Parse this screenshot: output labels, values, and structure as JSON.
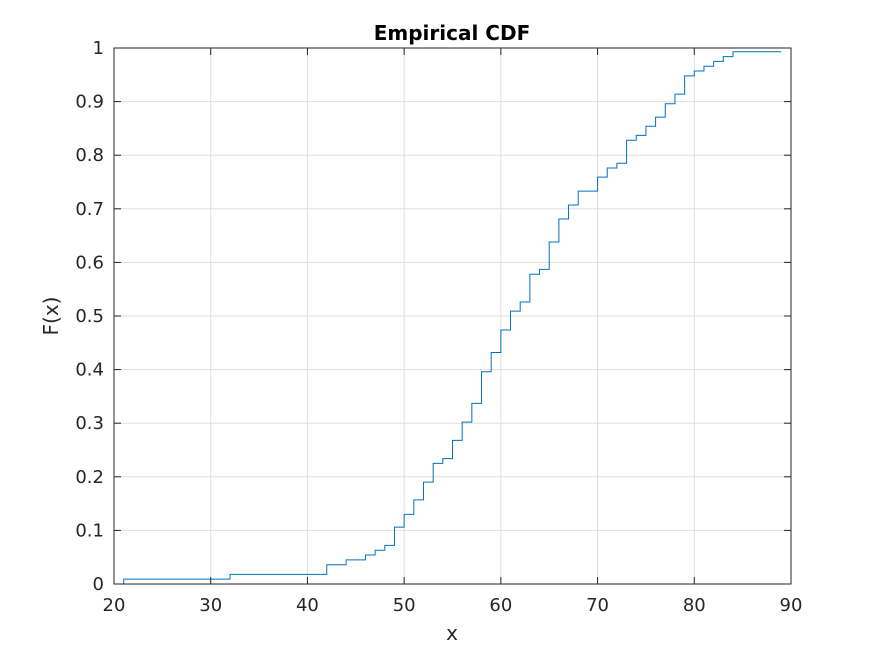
{
  "chart_data": {
    "type": "line",
    "title": "Empirical CDF",
    "xlabel": "x",
    "ylabel": "F(x)",
    "xlim": [
      20,
      90
    ],
    "ylim": [
      0,
      1
    ],
    "xticks": [
      "20",
      "30",
      "40",
      "50",
      "60",
      "70",
      "80",
      "90"
    ],
    "yticks": [
      "0",
      "0.1",
      "0.2",
      "0.3",
      "0.4",
      "0.5",
      "0.6",
      "0.7",
      "0.8",
      "0.9",
      "1"
    ],
    "grid": true,
    "line_color": "#0072BD",
    "series": [
      {
        "x": [
          21,
          21,
          32,
          32,
          42,
          42,
          44,
          44,
          46,
          46,
          47,
          47,
          48,
          48,
          49,
          49,
          50,
          50,
          51,
          51,
          52,
          52,
          53,
          53,
          54,
          54,
          55,
          55,
          56,
          56,
          57,
          57,
          58,
          58,
          59,
          59,
          60,
          60,
          61,
          61,
          62,
          62,
          63,
          63,
          64,
          64,
          65,
          65,
          66,
          66,
          67,
          67,
          68,
          68,
          70,
          70,
          71,
          71,
          72,
          72,
          73,
          73,
          74,
          74,
          75,
          75,
          76,
          76,
          77,
          77,
          78,
          78,
          79,
          79,
          80,
          80,
          81,
          81,
          82,
          82,
          83,
          83,
          84,
          84,
          89
        ],
        "y": [
          0,
          0.009,
          0.009,
          0.018,
          0.018,
          0.036,
          0.036,
          0.045,
          0.045,
          0.054,
          0.054,
          0.063,
          0.063,
          0.072,
          0.072,
          0.106,
          0.106,
          0.13,
          0.13,
          0.157,
          0.157,
          0.19,
          0.19,
          0.225,
          0.225,
          0.234,
          0.234,
          0.268,
          0.268,
          0.302,
          0.302,
          0.337,
          0.337,
          0.396,
          0.396,
          0.432,
          0.432,
          0.474,
          0.474,
          0.509,
          0.509,
          0.526,
          0.526,
          0.578,
          0.578,
          0.587,
          0.587,
          0.638,
          0.638,
          0.681,
          0.681,
          0.707,
          0.707,
          0.733,
          0.733,
          0.759,
          0.759,
          0.776,
          0.776,
          0.785,
          0.785,
          0.828,
          0.828,
          0.837,
          0.837,
          0.854,
          0.854,
          0.871,
          0.871,
          0.896,
          0.896,
          0.914,
          0.914,
          0.948,
          0.948,
          0.957,
          0.957,
          0.966,
          0.966,
          0.975,
          0.975,
          0.984,
          0.984,
          0.993,
          0.993
        ]
      }
    ]
  }
}
